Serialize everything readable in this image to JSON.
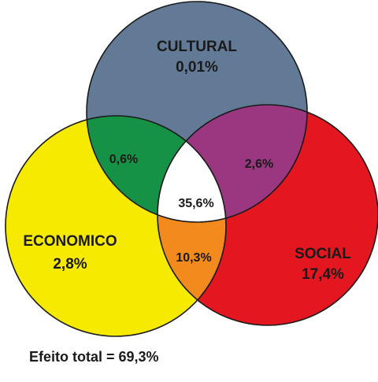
{
  "sets": {
    "cultural": {
      "name": "CULTURAL",
      "value": "0,01%",
      "color": "#627a96"
    },
    "economico": {
      "name": "ECONOMICO",
      "value": "2,8%",
      "color": "#f6ea00"
    },
    "social": {
      "name": "SOCIAL",
      "value": "17,4%",
      "color": "#e4161f"
    }
  },
  "intersections": {
    "cultural_economico": {
      "value": "0,6%",
      "color": "#169246"
    },
    "cultural_social": {
      "value": "2,6%",
      "color": "#9b3681"
    },
    "economico_social": {
      "value": "10,3%",
      "color": "#f28a1d"
    },
    "all": {
      "value": "35,6%",
      "color": "#ffffff"
    }
  },
  "footer": {
    "total_text": "Efeito total = 69,3%"
  }
}
